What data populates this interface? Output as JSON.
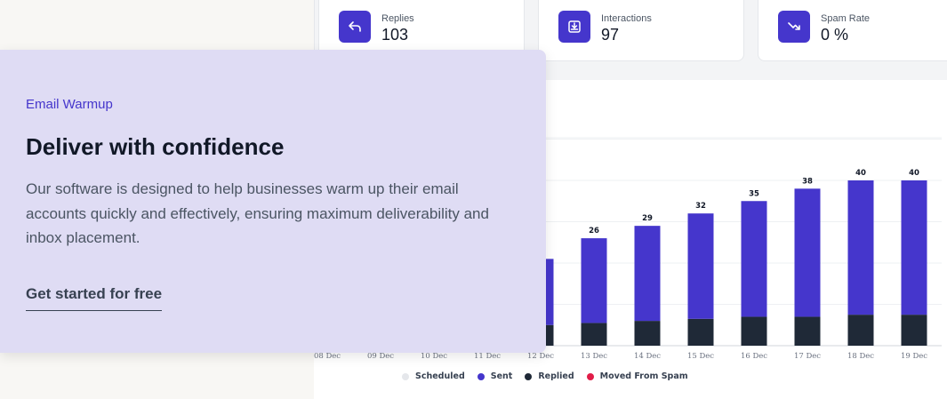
{
  "stats": [
    {
      "label": "Replies",
      "value": "103",
      "icon": "reply-arrow-icon"
    },
    {
      "label": "Interactions",
      "value": "97",
      "icon": "inbox-download-icon"
    },
    {
      "label": "Spam Rate",
      "value": "0 %",
      "icon": "trend-down-icon"
    }
  ],
  "promo": {
    "eyebrow": "Email Warmup",
    "title": "Deliver with confidence",
    "body": "Our software is designed to help businesses warm up their email accounts quickly and effectively, ensuring maximum deliverability and inbox placement.",
    "cta": "Get started for free"
  },
  "legend": {
    "scheduled": "Scheduled",
    "sent": "Sent",
    "replied": "Replied",
    "moved": "Moved From Spam"
  },
  "colors": {
    "accent": "#4536cc",
    "replied": "#1f2937",
    "scheduled": "#e5e7eb",
    "moved": "#e11d48"
  },
  "chart_data": {
    "type": "bar",
    "stacked": true,
    "categories": [
      "08 Dec",
      "09 Dec",
      "10 Dec",
      "11 Dec",
      "12 Dec",
      "13 Dec",
      "14 Dec",
      "15 Dec",
      "16 Dec",
      "17 Dec",
      "18 Dec",
      "19 Dec"
    ],
    "totals_labels": [
      null,
      null,
      null,
      null,
      null,
      "26",
      "29",
      "32",
      "35",
      "38",
      "40",
      "40"
    ],
    "series": [
      {
        "name": "Replied",
        "values": [
          null,
          null,
          null,
          null,
          5,
          5.5,
          6,
          6.5,
          7,
          7,
          7.5,
          7.5
        ]
      },
      {
        "name": "Sent",
        "values": [
          null,
          null,
          null,
          null,
          16,
          20.5,
          23,
          25.5,
          28,
          31,
          32.5,
          32.5
        ]
      }
    ],
    "ylim": [
      0,
      40
    ],
    "grid": true
  }
}
